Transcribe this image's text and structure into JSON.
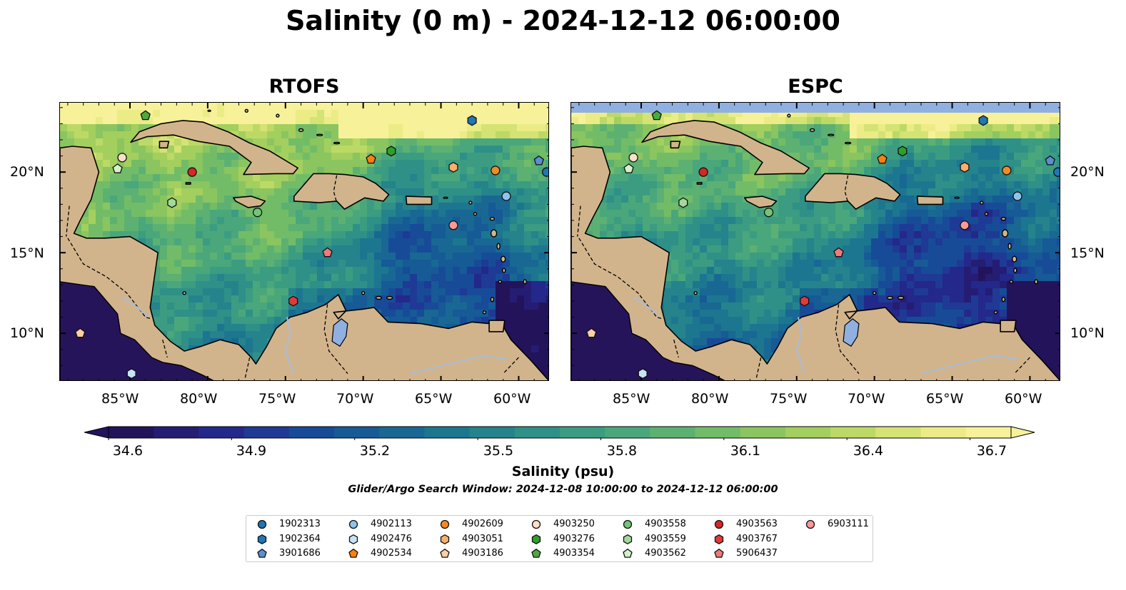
{
  "title": "Salinity (0 m) - 2024-12-12 06:00:00",
  "panels": [
    {
      "title": "RTOFS"
    },
    {
      "title": "ESPC"
    }
  ],
  "axes": {
    "lat_labels": [
      "20°N",
      "15°N",
      "10°N"
    ],
    "lon_labels": [
      "85°W",
      "80°W",
      "75°W",
      "70°W",
      "65°W",
      "60°W"
    ]
  },
  "map_extent": {
    "lon": [
      -89.5,
      -58
    ],
    "lat": [
      7,
      24.3
    ]
  },
  "colorbar": {
    "label": "Salinity (psu)",
    "range": [
      34.6,
      36.8
    ],
    "ticks": [
      "34.6",
      "34.9",
      "35.2",
      "35.5",
      "35.8",
      "36.1",
      "36.4",
      "36.7"
    ],
    "extend": "both",
    "colors": [
      "#23135b",
      "#251d73",
      "#23288a",
      "#1e3a95",
      "#174b97",
      "#165a96",
      "#186893",
      "#1d7690",
      "#25838c",
      "#2f9088",
      "#3b9c82",
      "#4aa77b",
      "#5cb172",
      "#72bc68",
      "#8ac560",
      "#a3cf5e",
      "#bdd965",
      "#d4e374",
      "#ebec86",
      "#f7f19a"
    ]
  },
  "search_window": "Glider/Argo Search Window: 2024-12-08 10:00:00 to 2024-12-12 06:00:00",
  "colors": {
    "land": "#d2b48c",
    "lake": "#8fb0e0",
    "band": "#8fb0e0"
  },
  "floats": [
    {
      "id": "1902313",
      "marker": "circle",
      "color": "#1f77b4"
    },
    {
      "id": "1902364",
      "marker": "hexagon",
      "color": "#1f77b4"
    },
    {
      "id": "3901686",
      "marker": "pentagon",
      "color": "#5b8fd0"
    },
    {
      "id": "4902113",
      "marker": "circle",
      "color": "#8ec4eb"
    },
    {
      "id": "4902476",
      "marker": "hexagon",
      "color": "#c6e4f6"
    },
    {
      "id": "4902534",
      "marker": "pentagon",
      "color": "#ff7f0e"
    },
    {
      "id": "4902609",
      "marker": "circle",
      "color": "#f58a24"
    },
    {
      "id": "4903051",
      "marker": "hexagon",
      "color": "#fdae6b"
    },
    {
      "id": "4903186",
      "marker": "pentagon",
      "color": "#fdd0a2"
    },
    {
      "id": "4903250",
      "marker": "circle",
      "color": "#fde0c8"
    },
    {
      "id": "4903276",
      "marker": "hexagon",
      "color": "#2ca02c"
    },
    {
      "id": "4903354",
      "marker": "pentagon",
      "color": "#4daa3c"
    },
    {
      "id": "4903558",
      "marker": "circle",
      "color": "#74c476"
    },
    {
      "id": "4903559",
      "marker": "hexagon",
      "color": "#a1d99b"
    },
    {
      "id": "4903562",
      "marker": "pentagon",
      "color": "#d4f2c9"
    },
    {
      "id": "4903563",
      "marker": "circle",
      "color": "#d62728"
    },
    {
      "id": "4903767",
      "marker": "hexagon",
      "color": "#e03a3a"
    },
    {
      "id": "5906437",
      "marker": "pentagon",
      "color": "#f07979"
    },
    {
      "id": "6903111",
      "marker": "circle",
      "color": "#ff9896"
    }
  ],
  "float_positions": [
    {
      "id": "4903354",
      "lon": -84,
      "lat": 23.5
    },
    {
      "id": "1902364",
      "lon": -63,
      "lat": 23.2
    },
    {
      "id": "4903250",
      "lon": -85.5,
      "lat": 20.9
    },
    {
      "id": "4903562",
      "lon": -85.8,
      "lat": 20.2
    },
    {
      "id": "4903563",
      "lon": -81,
      "lat": 20
    },
    {
      "id": "4902534",
      "lon": -69.5,
      "lat": 20.8
    },
    {
      "id": "4903276",
      "lon": -68.2,
      "lat": 21.3
    },
    {
      "id": "4903051",
      "lon": -64.2,
      "lat": 20.3
    },
    {
      "id": "4902609",
      "lon": -61.5,
      "lat": 20.1
    },
    {
      "id": "3901686",
      "lon": -58.7,
      "lat": 20.7
    },
    {
      "id": "1902313",
      "lon": -58.2,
      "lat": 20
    },
    {
      "id": "4902113",
      "lon": -60.8,
      "lat": 18.5
    },
    {
      "id": "4903559",
      "lon": -82.3,
      "lat": 18.1
    },
    {
      "id": "4903558",
      "lon": -76.8,
      "lat": 17.5
    },
    {
      "id": "6903111",
      "lon": -64.2,
      "lat": 16.7
    },
    {
      "id": "5906437",
      "lon": -72.3,
      "lat": 15
    },
    {
      "id": "4903767",
      "lon": -74.5,
      "lat": 12
    },
    {
      "id": "4903186",
      "lon": -88.2,
      "lat": 10
    },
    {
      "id": "4902476",
      "lon": -84.9,
      "lat": 7.5
    }
  ]
}
